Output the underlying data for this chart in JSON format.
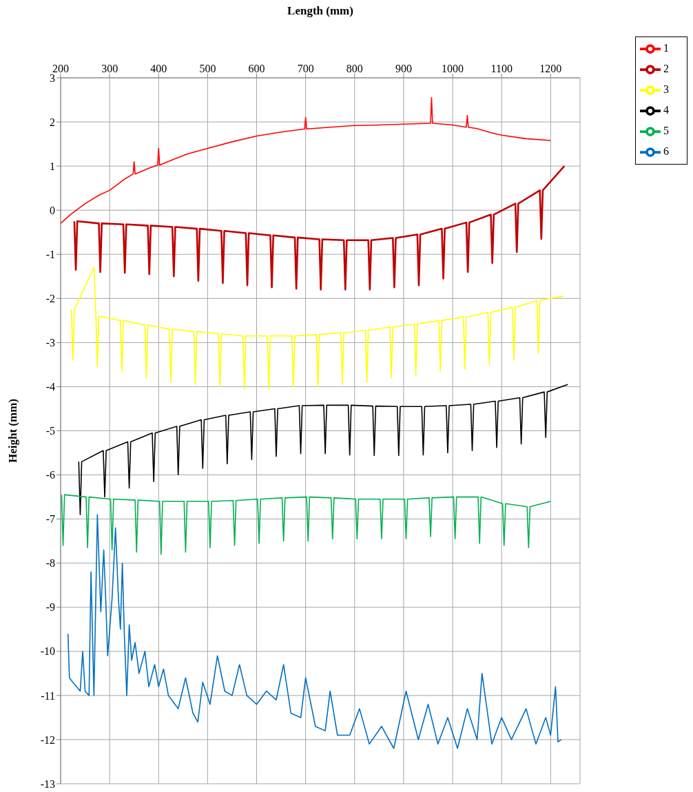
{
  "chart_data": {
    "type": "line",
    "xlabel": "Length (mm)",
    "ylabel": "Height (mm)",
    "xlim": [
      200,
      1260
    ],
    "xticks": [
      200,
      300,
      400,
      500,
      600,
      700,
      800,
      900,
      1000,
      1100,
      1200
    ],
    "ylim": [
      -13,
      3
    ],
    "yticks": [
      -13,
      -12,
      -11,
      -10,
      -9,
      -8,
      -7,
      -6,
      -5,
      -4,
      -3,
      -2,
      -1,
      0,
      1,
      2,
      3
    ],
    "grid": true,
    "legend": "top right",
    "marker": "none",
    "line_style": "solid",
    "series": [
      {
        "name": "1",
        "color": "#ff0000",
        "x": [
          200,
          220,
          250,
          280,
          300,
          330,
          348,
          350,
          352,
          380,
          398,
          400,
          402,
          430,
          460,
          500,
          550,
          600,
          650,
          698,
          700,
          702,
          750,
          800,
          850,
          900,
          955,
          957,
          959,
          1000,
          1028,
          1030,
          1032,
          1050,
          1080,
          1100,
          1150,
          1200
        ],
        "values": [
          -0.3,
          -0.1,
          0.15,
          0.35,
          0.45,
          0.7,
          0.82,
          1.1,
          0.82,
          0.95,
          1.02,
          1.4,
          1.02,
          1.15,
          1.28,
          1.4,
          1.55,
          1.68,
          1.77,
          1.84,
          2.1,
          1.84,
          1.88,
          1.92,
          1.93,
          1.95,
          1.97,
          2.55,
          1.97,
          1.93,
          1.88,
          2.15,
          1.88,
          1.85,
          1.75,
          1.7,
          1.62,
          1.58
        ]
      },
      {
        "name": "2",
        "color": "#c00000",
        "x": [
          228,
          231,
          234,
          278,
          281,
          284,
          328,
          331,
          334,
          378,
          381,
          384,
          428,
          431,
          434,
          478,
          481,
          484,
          528,
          531,
          534,
          578,
          581,
          584,
          628,
          631,
          634,
          678,
          681,
          684,
          728,
          731,
          734,
          778,
          781,
          784,
          828,
          831,
          834,
          878,
          881,
          884,
          928,
          931,
          934,
          978,
          981,
          984,
          1028,
          1031,
          1034,
          1078,
          1081,
          1084,
          1128,
          1131,
          1134,
          1178,
          1181,
          1184,
          1228
        ],
        "values": [
          -0.25,
          -1.35,
          -0.25,
          -0.3,
          -1.4,
          -0.3,
          -0.32,
          -1.42,
          -0.32,
          -0.35,
          -1.45,
          -0.35,
          -0.38,
          -1.5,
          -0.38,
          -0.42,
          -1.6,
          -0.42,
          -0.47,
          -1.65,
          -0.47,
          -0.52,
          -1.7,
          -0.52,
          -0.57,
          -1.75,
          -0.57,
          -0.62,
          -1.78,
          -0.62,
          -0.66,
          -1.8,
          -0.66,
          -0.68,
          -1.8,
          -0.68,
          -0.68,
          -1.8,
          -0.68,
          -0.63,
          -1.75,
          -0.63,
          -0.55,
          -1.7,
          -0.55,
          -0.42,
          -1.55,
          -0.42,
          -0.28,
          -1.4,
          -0.28,
          -0.1,
          -1.2,
          -0.1,
          0.15,
          -0.95,
          0.15,
          0.45,
          -0.65,
          0.45,
          1.0
        ]
      },
      {
        "name": "3",
        "color": "#ffff00",
        "x": [
          222,
          225,
          228,
          268,
          272,
          275,
          278,
          322,
          325,
          328,
          372,
          375,
          378,
          422,
          425,
          428,
          472,
          475,
          478,
          522,
          525,
          528,
          572,
          575,
          578,
          622,
          625,
          628,
          672,
          675,
          678,
          722,
          725,
          728,
          772,
          775,
          778,
          822,
          825,
          828,
          872,
          875,
          878,
          922,
          925,
          928,
          972,
          975,
          978,
          1022,
          1025,
          1028,
          1072,
          1075,
          1078,
          1122,
          1125,
          1128,
          1172,
          1175,
          1178,
          1200,
          1226
        ],
        "values": [
          -2.25,
          -3.4,
          -2.25,
          -1.3,
          -2.4,
          -3.55,
          -2.4,
          -2.5,
          -3.65,
          -2.5,
          -2.6,
          -3.8,
          -2.6,
          -2.7,
          -3.9,
          -2.7,
          -2.75,
          -3.95,
          -2.75,
          -2.8,
          -4.0,
          -2.8,
          -2.85,
          -4.05,
          -2.85,
          -2.85,
          -4.05,
          -2.85,
          -2.85,
          -4.0,
          -2.85,
          -2.82,
          -4.0,
          -2.82,
          -2.78,
          -3.95,
          -2.78,
          -2.72,
          -3.9,
          -2.72,
          -2.65,
          -3.8,
          -2.65,
          -2.58,
          -3.75,
          -2.58,
          -2.5,
          -3.65,
          -2.5,
          -2.42,
          -3.6,
          -2.42,
          -2.32,
          -3.5,
          -2.32,
          -2.2,
          -3.4,
          -2.2,
          -2.05,
          -3.25,
          -2.05,
          -2.0,
          -1.95
        ]
      },
      {
        "name": "4",
        "color": "#000000",
        "x": [
          237,
          240,
          243,
          287,
          290,
          293,
          337,
          340,
          343,
          387,
          390,
          393,
          437,
          440,
          443,
          487,
          490,
          493,
          537,
          540,
          543,
          587,
          590,
          593,
          637,
          640,
          643,
          687,
          690,
          693,
          737,
          740,
          743,
          787,
          790,
          793,
          837,
          840,
          843,
          887,
          890,
          893,
          937,
          940,
          943,
          987,
          990,
          993,
          1037,
          1040,
          1043,
          1087,
          1090,
          1093,
          1137,
          1140,
          1143,
          1187,
          1190,
          1193,
          1235
        ],
        "values": [
          -5.7,
          -6.9,
          -5.7,
          -5.45,
          -6.5,
          -5.45,
          -5.25,
          -6.3,
          -5.25,
          -5.05,
          -6.15,
          -5.05,
          -4.9,
          -6.0,
          -4.9,
          -4.75,
          -5.85,
          -4.75,
          -4.65,
          -5.75,
          -4.65,
          -4.57,
          -5.65,
          -4.57,
          -4.5,
          -5.58,
          -4.5,
          -4.43,
          -5.52,
          -4.43,
          -4.42,
          -5.52,
          -4.42,
          -4.42,
          -5.55,
          -4.42,
          -4.44,
          -5.56,
          -4.44,
          -4.45,
          -5.56,
          -4.45,
          -4.45,
          -5.55,
          -4.45,
          -4.43,
          -5.5,
          -4.43,
          -4.4,
          -5.45,
          -4.4,
          -4.33,
          -5.38,
          -4.33,
          -4.25,
          -5.3,
          -4.25,
          -4.12,
          -5.15,
          -4.12,
          -3.95
        ]
      },
      {
        "name": "5",
        "color": "#00b050",
        "x": [
          202,
          205,
          208,
          252,
          255,
          258,
          302,
          305,
          308,
          352,
          355,
          358,
          402,
          405,
          408,
          452,
          455,
          458,
          502,
          505,
          508,
          552,
          555,
          558,
          602,
          605,
          608,
          652,
          655,
          658,
          702,
          705,
          708,
          752,
          755,
          758,
          802,
          805,
          808,
          852,
          855,
          858,
          902,
          905,
          908,
          952,
          955,
          958,
          1002,
          1005,
          1008,
          1052,
          1055,
          1058,
          1102,
          1105,
          1108,
          1152,
          1155,
          1158,
          1200
        ],
        "values": [
          -6.45,
          -7.6,
          -6.45,
          -6.5,
          -7.65,
          -6.5,
          -6.55,
          -7.7,
          -6.55,
          -6.57,
          -7.75,
          -6.57,
          -6.6,
          -7.8,
          -6.6,
          -6.6,
          -7.75,
          -6.6,
          -6.6,
          -7.65,
          -6.6,
          -6.58,
          -7.6,
          -6.58,
          -6.55,
          -7.55,
          -6.55,
          -6.52,
          -7.5,
          -6.52,
          -6.5,
          -7.5,
          -6.5,
          -6.52,
          -7.45,
          -6.52,
          -6.55,
          -7.45,
          -6.55,
          -6.55,
          -7.45,
          -6.55,
          -6.55,
          -7.45,
          -6.55,
          -6.52,
          -7.4,
          -6.52,
          -6.5,
          -7.45,
          -6.5,
          -6.5,
          -7.55,
          -6.5,
          -6.65,
          -7.6,
          -6.65,
          -6.72,
          -7.65,
          -6.72,
          -6.6
        ]
      },
      {
        "name": "6",
        "color": "#0070c0",
        "x": [
          215,
          218,
          225,
          240,
          245,
          250,
          258,
          262,
          268,
          275,
          282,
          288,
          292,
          296,
          305,
          312,
          318,
          322,
          326,
          330,
          335,
          340,
          345,
          352,
          360,
          372,
          380,
          392,
          400,
          410,
          420,
          440,
          455,
          470,
          480,
          490,
          505,
          520,
          535,
          550,
          565,
          580,
          600,
          620,
          640,
          655,
          670,
          690,
          700,
          720,
          740,
          750,
          765,
          790,
          810,
          830,
          855,
          880,
          905,
          930,
          950,
          970,
          990,
          1010,
          1030,
          1050,
          1060,
          1080,
          1100,
          1120,
          1150,
          1170,
          1190,
          1200,
          1210,
          1215,
          1222
        ],
        "values": [
          -9.6,
          -10.6,
          -10.7,
          -10.9,
          -10.0,
          -10.9,
          -11.0,
          -8.2,
          -11.0,
          -6.9,
          -9.1,
          -7.7,
          -8.8,
          -10.1,
          -8.8,
          -7.2,
          -8.8,
          -9.5,
          -8.0,
          -9.6,
          -11.0,
          -9.4,
          -10.2,
          -9.8,
          -10.5,
          -10.0,
          -10.8,
          -10.3,
          -10.8,
          -10.4,
          -11.0,
          -11.3,
          -10.6,
          -11.4,
          -11.6,
          -10.7,
          -11.2,
          -10.1,
          -10.9,
          -11.0,
          -10.3,
          -11.0,
          -11.2,
          -10.9,
          -11.1,
          -10.3,
          -11.4,
          -11.5,
          -10.6,
          -11.7,
          -11.8,
          -10.9,
          -11.9,
          -11.9,
          -11.3,
          -12.1,
          -11.7,
          -12.2,
          -10.9,
          -12.0,
          -11.2,
          -12.1,
          -11.5,
          -12.2,
          -11.3,
          -12.0,
          -10.5,
          -12.1,
          -11.5,
          -12.0,
          -11.3,
          -12.1,
          -11.5,
          -11.9,
          -10.8,
          -12.05,
          -12.0
        ]
      }
    ]
  }
}
